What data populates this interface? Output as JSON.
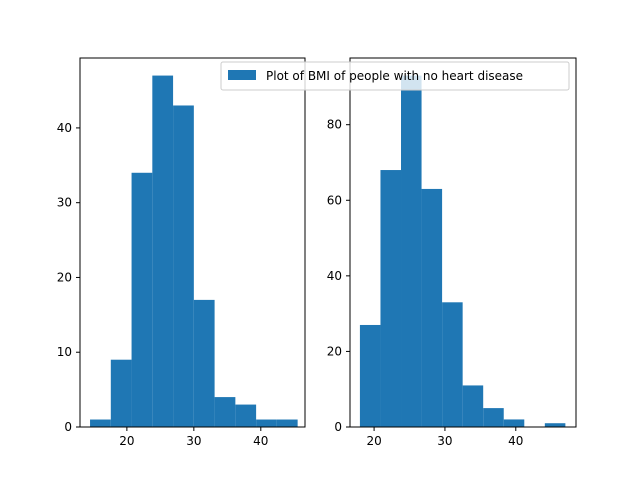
{
  "colors": {
    "bar": "#1f77b4",
    "axis": "#000000",
    "background": "#ffffff",
    "legend_border": "#cccccc"
  },
  "legend": {
    "label": "Plot of BMI of people with no heart disease",
    "placement": "top-right of right panel"
  },
  "chart_data": [
    {
      "type": "bar",
      "title": "",
      "xlabel": "",
      "ylabel": "",
      "bins": [
        [
          14.5,
          17.6
        ],
        [
          17.6,
          20.7
        ],
        [
          20.7,
          23.8
        ],
        [
          23.8,
          26.9
        ],
        [
          26.9,
          30.0
        ],
        [
          30.0,
          33.1
        ],
        [
          33.1,
          36.2
        ],
        [
          36.2,
          39.3
        ],
        [
          39.3,
          42.4
        ],
        [
          42.4,
          45.5
        ]
      ],
      "values": [
        1,
        9,
        34,
        47,
        43,
        17,
        4,
        3,
        1,
        1
      ],
      "xlim": [
        13,
        46.6
      ],
      "ylim": [
        0,
        49.35
      ],
      "xticks": [
        20,
        30,
        40
      ],
      "yticks": [
        0,
        10,
        20,
        30,
        40
      ],
      "grid": false
    },
    {
      "type": "bar",
      "title": "",
      "xlabel": "",
      "ylabel": "",
      "series_name": "Plot of BMI of people with no heart disease",
      "bins": [
        [
          18.0,
          20.9
        ],
        [
          20.9,
          23.8
        ],
        [
          23.8,
          26.7
        ],
        [
          26.7,
          29.6
        ],
        [
          29.6,
          32.5
        ],
        [
          32.5,
          35.4
        ],
        [
          35.4,
          38.3
        ],
        [
          38.3,
          41.2
        ],
        [
          41.2,
          44.1
        ],
        [
          44.1,
          47.0
        ]
      ],
      "values": [
        27,
        68,
        93,
        63,
        33,
        11,
        5,
        2,
        0,
        1
      ],
      "xlim": [
        16.6,
        48.5
      ],
      "ylim": [
        0,
        97.65
      ],
      "xticks": [
        20,
        30,
        40
      ],
      "yticks": [
        0,
        20,
        40,
        60,
        80
      ],
      "grid": false
    }
  ]
}
